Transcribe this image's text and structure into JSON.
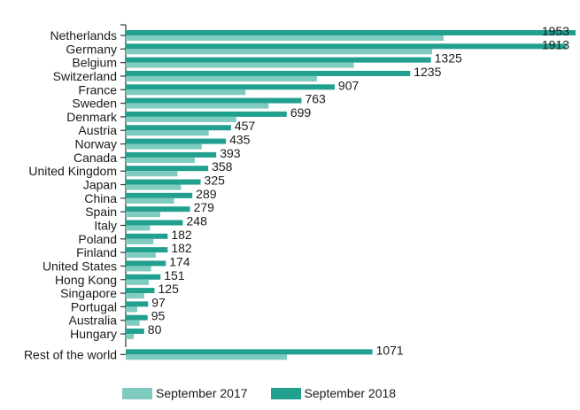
{
  "chart_data": {
    "type": "bar",
    "orientation": "horizontal",
    "categories": [
      "Netherlands",
      "Germany",
      "Belgium",
      "Switzerland",
      "France",
      "Sweden",
      "Denmark",
      "Austria",
      "Norway",
      "Canada",
      "United Kingdom",
      "Japan",
      "China",
      "Spain",
      "Italy",
      "Poland",
      "Finland",
      "United States",
      "Hong Kong",
      "Singapore",
      "Portugal",
      "Australia",
      "Hungary",
      "Rest of the world"
    ],
    "series": [
      {
        "name": "September 2017",
        "color": "#80cbc0",
        "values": [
          1380,
          1330,
          990,
          830,
          520,
          620,
          480,
          360,
          330,
          300,
          225,
          240,
          210,
          150,
          105,
          120,
          130,
          110,
          100,
          80,
          50,
          60,
          35,
          700
        ]
      },
      {
        "name": "September 2018",
        "color": "#22a08f",
        "values": [
          1953,
          1913,
          1325,
          1235,
          907,
          763,
          699,
          457,
          435,
          393,
          358,
          325,
          289,
          279,
          248,
          182,
          182,
          174,
          151,
          125,
          97,
          95,
          80,
          1071
        ]
      }
    ],
    "data_labels": [
      "1953",
      "1913",
      "1325",
      "1235",
      "907",
      "763",
      "699",
      "457",
      "435",
      "393",
      "358",
      "325",
      "289",
      "279",
      "248",
      "182",
      "182",
      "174",
      "151",
      "125",
      "97",
      "95",
      "80",
      "1071"
    ],
    "xlim": [
      0,
      1953
    ],
    "legend_position": "bottom",
    "grid": false
  },
  "legend": {
    "items": [
      {
        "label": "September 2017",
        "color": "#80cbc0"
      },
      {
        "label": "September 2018",
        "color": "#22a08f"
      }
    ]
  }
}
